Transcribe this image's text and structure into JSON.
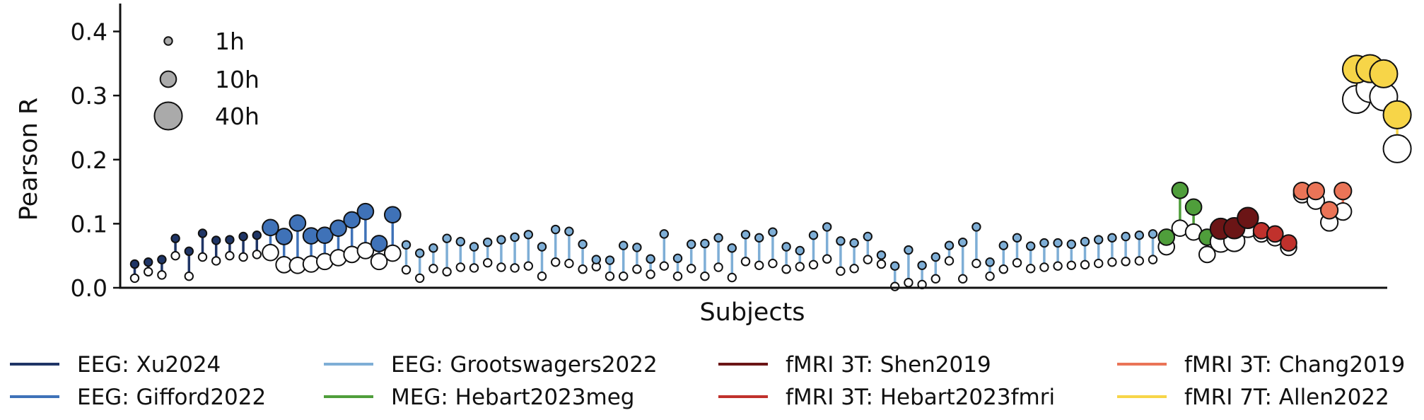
{
  "chart_data": {
    "type": "scatter",
    "xlabel": "Subjects",
    "ylabel": "Pearson R",
    "ylim": [
      0,
      0.44
    ],
    "yticks": [
      "0.0",
      "0.1",
      "0.2",
      "0.3",
      "0.4"
    ],
    "grid": false,
    "size_legend": {
      "placement": "top-left",
      "items": [
        {
          "label": "1h",
          "hours": 1
        },
        {
          "label": "10h",
          "hours": 10
        },
        {
          "label": "40h",
          "hours": 40
        }
      ]
    },
    "legend": {
      "placement": "bottom",
      "entries": [
        {
          "label": "EEG: Xu2024",
          "color": "#1f3566"
        },
        {
          "label": "EEG: Gifford2022",
          "color": "#3f72b8"
        },
        {
          "label": "EEG: Grootswagers2022",
          "color": "#7eaed6"
        },
        {
          "label": "MEG: Hebart2023meg",
          "color": "#4f9e3b"
        },
        {
          "label": "fMRI 3T: Shen2019",
          "color": "#6b1516"
        },
        {
          "label": "fMRI 3T: Hebart2023fmri",
          "color": "#c0312c"
        },
        {
          "label": "fMRI 3T: Chang2019",
          "color": "#ea7457"
        },
        {
          "label": "fMRI 7T: Allen2022",
          "color": "#f7d548"
        }
      ]
    },
    "series": [
      {
        "dataset": "EEG: Xu2024",
        "color": "#1f3566",
        "hours": 1,
        "x": [
          1,
          2,
          3,
          4,
          5,
          6,
          7,
          8,
          9,
          10
        ],
        "top": [
          0.037,
          0.04,
          0.044,
          0.077,
          0.057,
          0.085,
          0.074,
          0.075,
          0.08,
          0.082
        ],
        "bottom": [
          0.015,
          0.025,
          0.02,
          0.05,
          0.018,
          0.048,
          0.042,
          0.05,
          0.048,
          0.052
        ]
      },
      {
        "dataset": "EEG: Gifford2022",
        "color": "#3f72b8",
        "hours": 10,
        "x": [
          11,
          12,
          13,
          14,
          15,
          16,
          17,
          18,
          19,
          20
        ],
        "top": [
          0.094,
          0.08,
          0.101,
          0.081,
          0.082,
          0.093,
          0.106,
          0.119,
          0.069,
          0.114
        ],
        "bottom": [
          0.055,
          0.036,
          0.035,
          0.037,
          0.041,
          0.047,
          0.052,
          0.058,
          0.041,
          0.054
        ]
      },
      {
        "dataset": "EEG: Grootswagers2022",
        "color": "#7eaed6",
        "hours": 1,
        "x": [
          21,
          22,
          23,
          24,
          25,
          26,
          27,
          28,
          29,
          30,
          31,
          32,
          33,
          34,
          35,
          36,
          37,
          38,
          39,
          40,
          41,
          42,
          43,
          44,
          45,
          46,
          47,
          48,
          49,
          50,
          51,
          52,
          53,
          54,
          55,
          56,
          57,
          58,
          59,
          60,
          61,
          62,
          63,
          64,
          65,
          66,
          67,
          68,
          69,
          70,
          71,
          72,
          73,
          74,
          75,
          76
        ],
        "top": [
          0.067,
          0.054,
          0.062,
          0.077,
          0.072,
          0.064,
          0.071,
          0.075,
          0.079,
          0.083,
          0.064,
          0.091,
          0.088,
          0.068,
          0.044,
          0.043,
          0.066,
          0.063,
          0.045,
          0.084,
          0.046,
          0.068,
          0.069,
          0.078,
          0.062,
          0.083,
          0.078,
          0.087,
          0.064,
          0.058,
          0.082,
          0.095,
          0.073,
          0.07,
          0.08,
          0.051,
          0.034,
          0.059,
          0.035,
          0.048,
          0.066,
          0.071,
          0.095,
          0.04,
          0.066,
          0.078,
          0.065,
          0.07,
          0.07,
          0.068,
          0.072,
          0.075,
          0.078,
          0.08,
          0.082,
          0.084
        ],
        "bottom": [
          0.028,
          0.015,
          0.03,
          0.025,
          0.032,
          0.031,
          0.039,
          0.032,
          0.031,
          0.034,
          0.018,
          0.04,
          0.038,
          0.029,
          0.033,
          0.018,
          0.018,
          0.029,
          0.021,
          0.034,
          0.018,
          0.03,
          0.018,
          0.032,
          0.016,
          0.041,
          0.035,
          0.038,
          0.029,
          0.033,
          0.036,
          0.045,
          0.026,
          0.03,
          0.044,
          0.037,
          0.002,
          0.008,
          0.005,
          0.014,
          0.042,
          0.014,
          0.038,
          0.018,
          0.029,
          0.039,
          0.03,
          0.032,
          0.034,
          0.035,
          0.036,
          0.038,
          0.04,
          0.041,
          0.042,
          0.044
        ]
      },
      {
        "dataset": "MEG: Hebart2023meg",
        "color": "#4f9e3b",
        "hours": 10,
        "x": [
          77,
          78,
          79,
          80
        ],
        "top": [
          0.079,
          0.152,
          0.126,
          0.079
        ],
        "bottom": [
          0.064,
          0.093,
          0.087,
          0.052
        ]
      },
      {
        "dataset": "fMRI 3T: Shen2019",
        "color": "#6b1516",
        "hours": 20,
        "x": [
          81,
          82,
          83
        ],
        "top": [
          0.092,
          0.093,
          0.109
        ],
        "bottom": [
          0.072,
          0.073,
          0.095
        ]
      },
      {
        "dataset": "fMRI 3T: Hebart2023fmri",
        "color": "#c0312c",
        "hours": 10,
        "x": [
          84,
          85,
          86
        ],
        "top": [
          0.089,
          0.084,
          0.07
        ],
        "bottom": [
          0.084,
          0.078,
          0.063
        ]
      },
      {
        "dataset": "fMRI 3T: Chang2019",
        "color": "#ea7457",
        "hours": 12,
        "x": [
          87,
          88,
          89,
          90
        ],
        "top": [
          0.151,
          0.151,
          0.121,
          0.151
        ],
        "bottom": [
          0.146,
          0.136,
          0.102,
          0.119
        ]
      },
      {
        "dataset": "fMRI 7T: Allen2022",
        "color": "#f7d548",
        "hours": 40,
        "x": [
          91,
          92,
          93,
          94
        ],
        "top": [
          0.341,
          0.342,
          0.334,
          0.27
        ],
        "bottom": [
          0.294,
          0.311,
          0.298,
          0.217
        ]
      }
    ]
  }
}
